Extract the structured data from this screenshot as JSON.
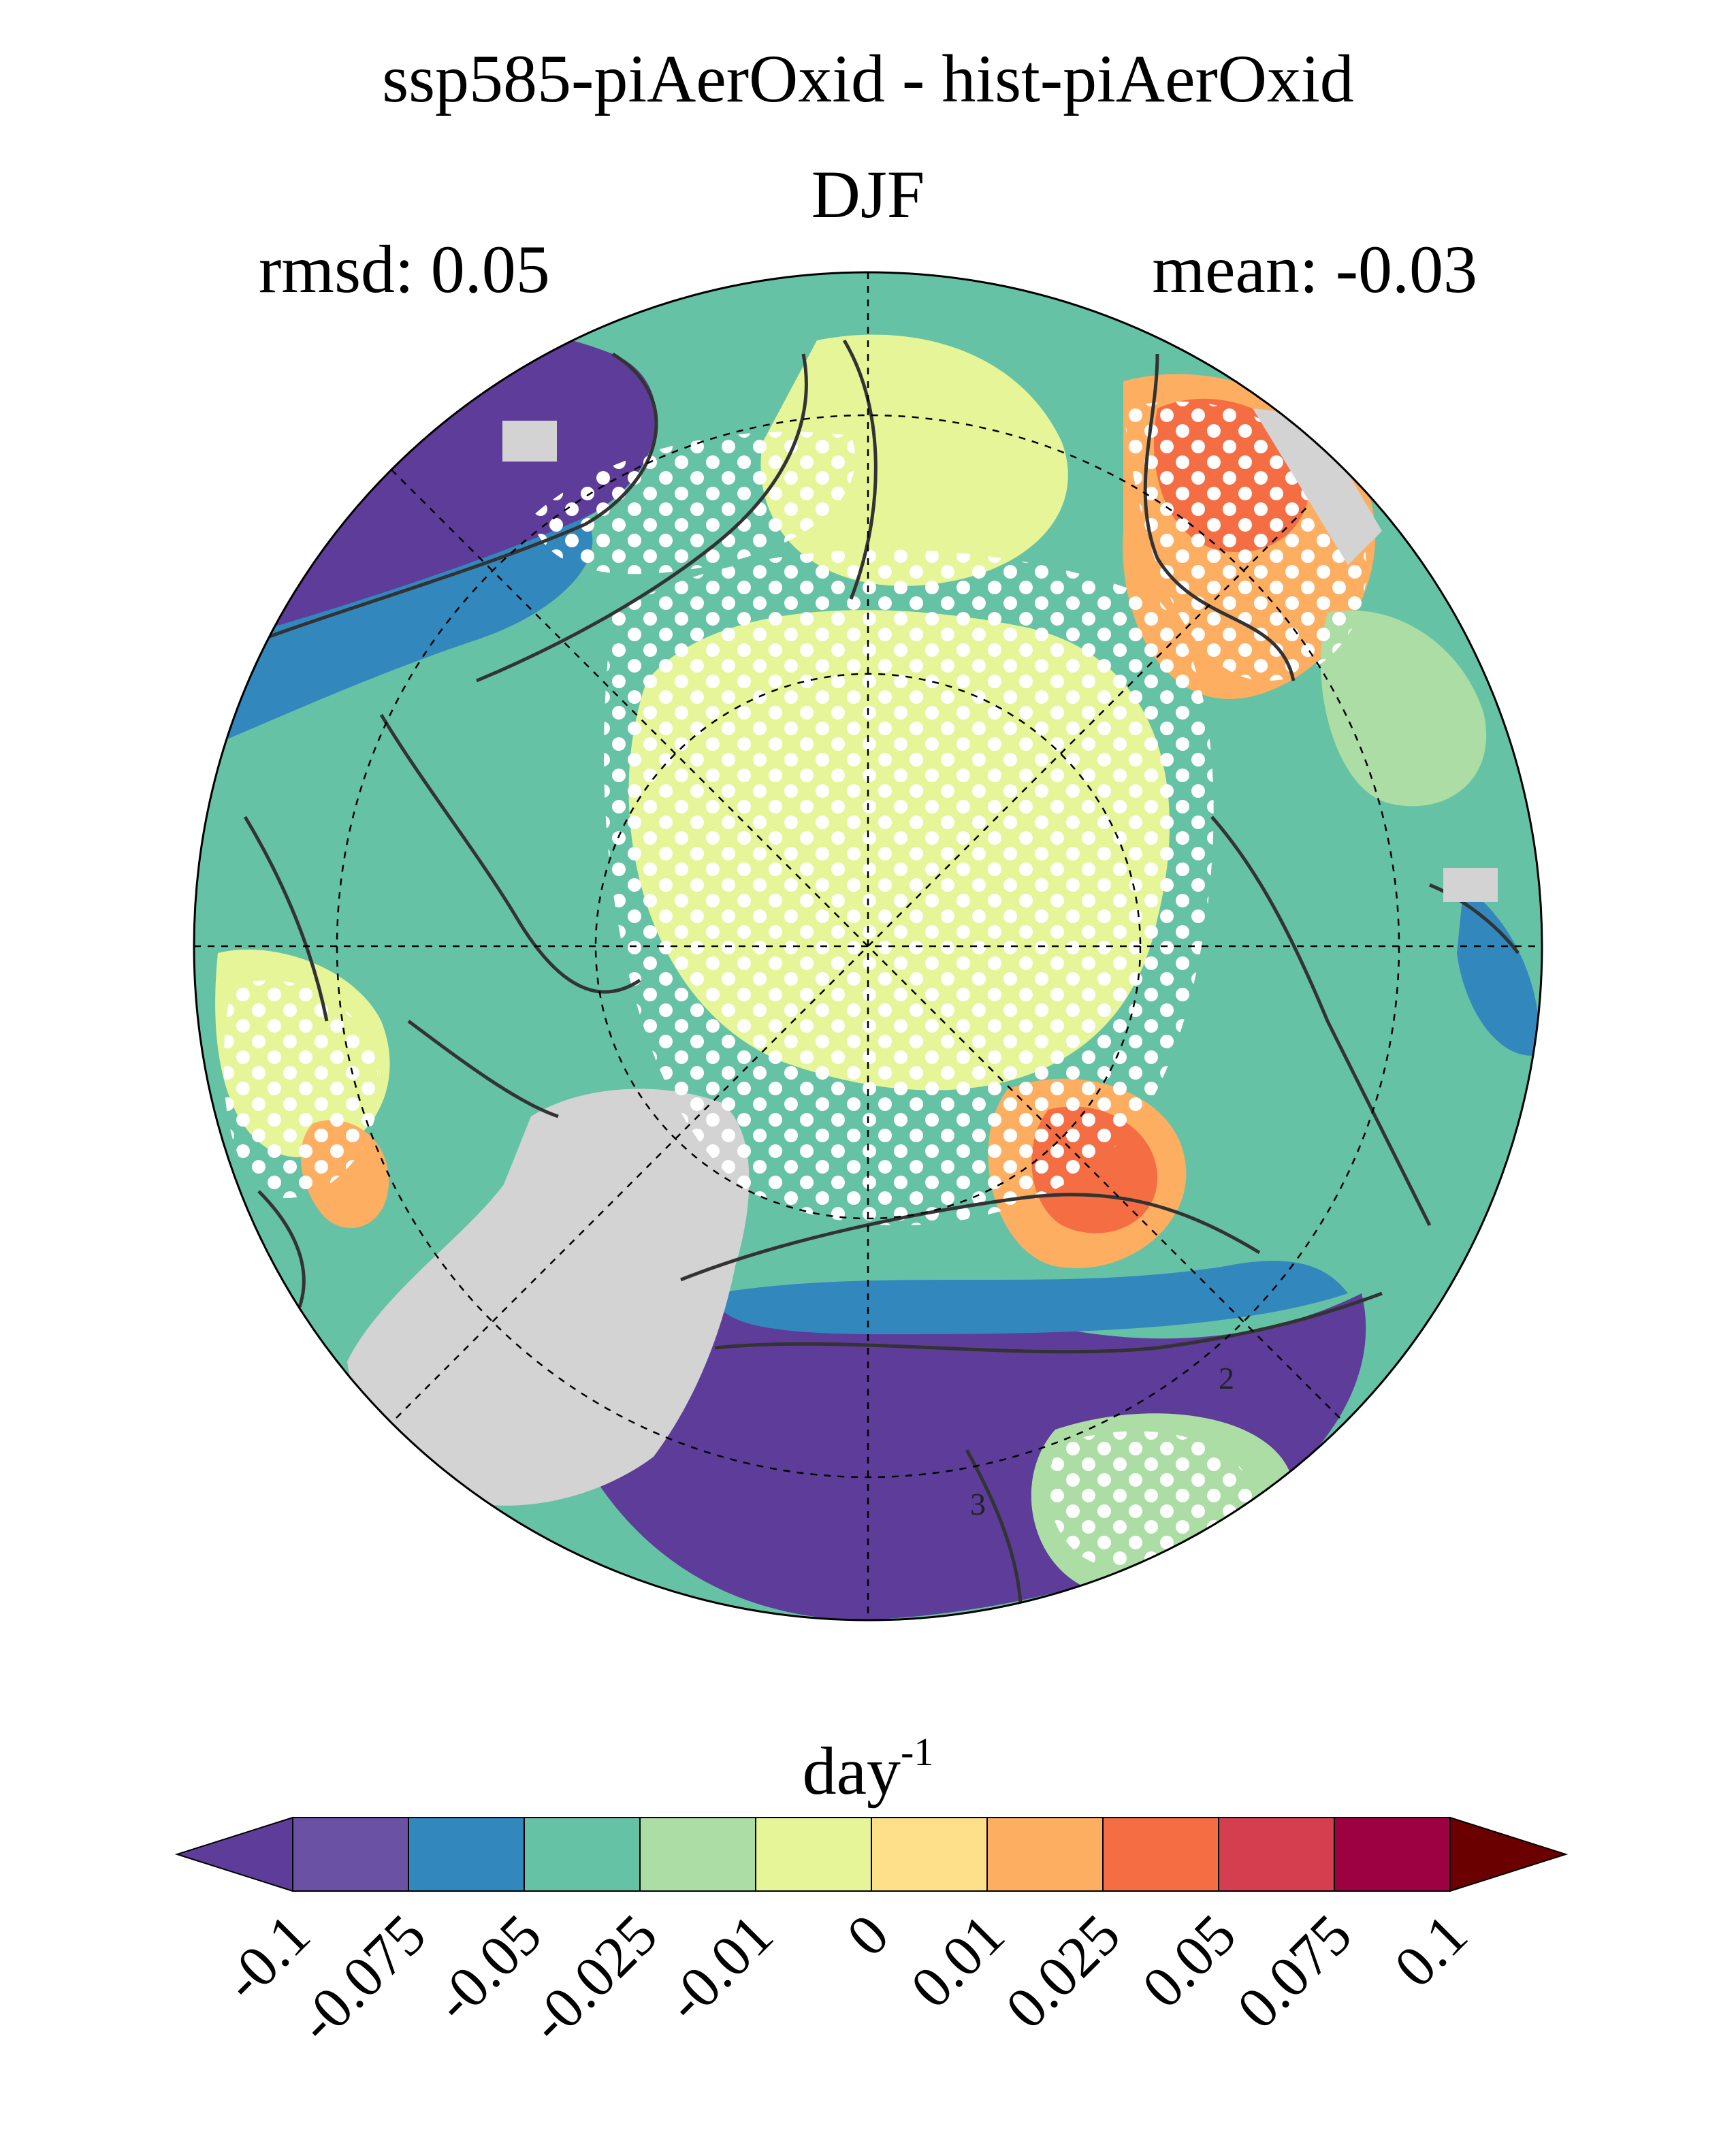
{
  "title": "ssp585-piAerOxid - hist-piAerOxid",
  "season": "DJF",
  "rmsd_label": "rmsd: 0.05",
  "mean_label": "mean: -0.03",
  "colorbar": {
    "unit_base": "day",
    "unit_exponent": "-1",
    "ticks": [
      "-0.1",
      "-0.075",
      "-0.05",
      "-0.025",
      "-0.01",
      "0",
      "0.01",
      "0.025",
      "0.05",
      "0.075",
      "0.1"
    ],
    "colors": [
      "#5e3c99",
      "#6a51a3",
      "#3288bd",
      "#66c2a5",
      "#abdda4",
      "#e6f598",
      "#fee08b",
      "#fdae61",
      "#f46d43",
      "#d53e4f",
      "#9e0142",
      "#6b0000"
    ],
    "extend": "both"
  },
  "map": {
    "projection": "north-polar-stereographic",
    "land_mask_color": "#d3d3d3",
    "stipple_color": "#ffffff",
    "contour_labels": [
      "2",
      "3"
    ]
  }
}
